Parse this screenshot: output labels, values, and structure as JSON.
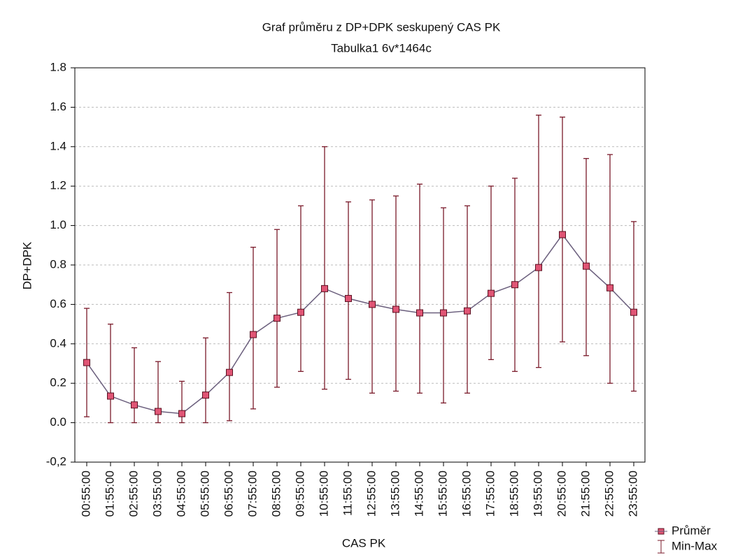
{
  "chart_data": {
    "type": "line",
    "title": "Graf průměru z DP+DPK seskupený CAS PK",
    "subtitle": "Tabulka1 6v*1464c",
    "x_label": "CAS PK",
    "y_label": "DP+DPK",
    "categories": [
      "00:55:00",
      "01:55:00",
      "02:55:00",
      "03:55:00",
      "04:55:00",
      "05:55:00",
      "06:55:00",
      "07:55:00",
      "08:55:00",
      "09:55:00",
      "10:55:00",
      "11:55:00",
      "12:55:00",
      "13:55:00",
      "14:55:00",
      "15:55:00",
      "16:55:00",
      "17:55:00",
      "18:55:00",
      "19:55:00",
      "20:55:00",
      "21:55:00",
      "22:55:00",
      "23:55:00"
    ],
    "series": [
      {
        "name": "Průměr",
        "color": "#e05575",
        "line_color": "#6b5f7d",
        "values": [
          0.305,
          0.135,
          0.09,
          0.057,
          0.046,
          0.14,
          0.255,
          0.447,
          0.53,
          0.56,
          0.68,
          0.63,
          0.6,
          0.575,
          0.557,
          0.557,
          0.567,
          0.656,
          0.7,
          0.787,
          0.954,
          0.794,
          0.684,
          0.56
        ]
      }
    ],
    "range": {
      "name": "Min-Max",
      "color": "#7a1a2a",
      "min": [
        0.03,
        0,
        0,
        0,
        0,
        0,
        0.01,
        0.07,
        0.18,
        0.26,
        0.17,
        0.22,
        0.15,
        0.16,
        0.15,
        0.1,
        0.15,
        0.32,
        0.26,
        0.28,
        0.41,
        0.34,
        0.2,
        0.16
      ],
      "max": [
        0.58,
        0.5,
        0.38,
        0.31,
        0.21,
        0.43,
        0.66,
        0.89,
        0.98,
        1.1,
        1.4,
        1.12,
        1.13,
        1.15,
        1.21,
        1.09,
        1.1,
        1.2,
        1.24,
        1.56,
        1.55,
        1.34,
        1.36,
        1.02
      ]
    },
    "ylim": [
      -0.2,
      1.8
    ],
    "yticks": [
      {
        "value": -0.2,
        "label": "-0,2"
      },
      {
        "value": 0,
        "label": "0.0"
      },
      0.2,
      0.4,
      0.6,
      0.8,
      {
        "value": 1,
        "label": "1.0"
      },
      1.2,
      1.4,
      1.6,
      1.8
    ],
    "grid": true
  }
}
